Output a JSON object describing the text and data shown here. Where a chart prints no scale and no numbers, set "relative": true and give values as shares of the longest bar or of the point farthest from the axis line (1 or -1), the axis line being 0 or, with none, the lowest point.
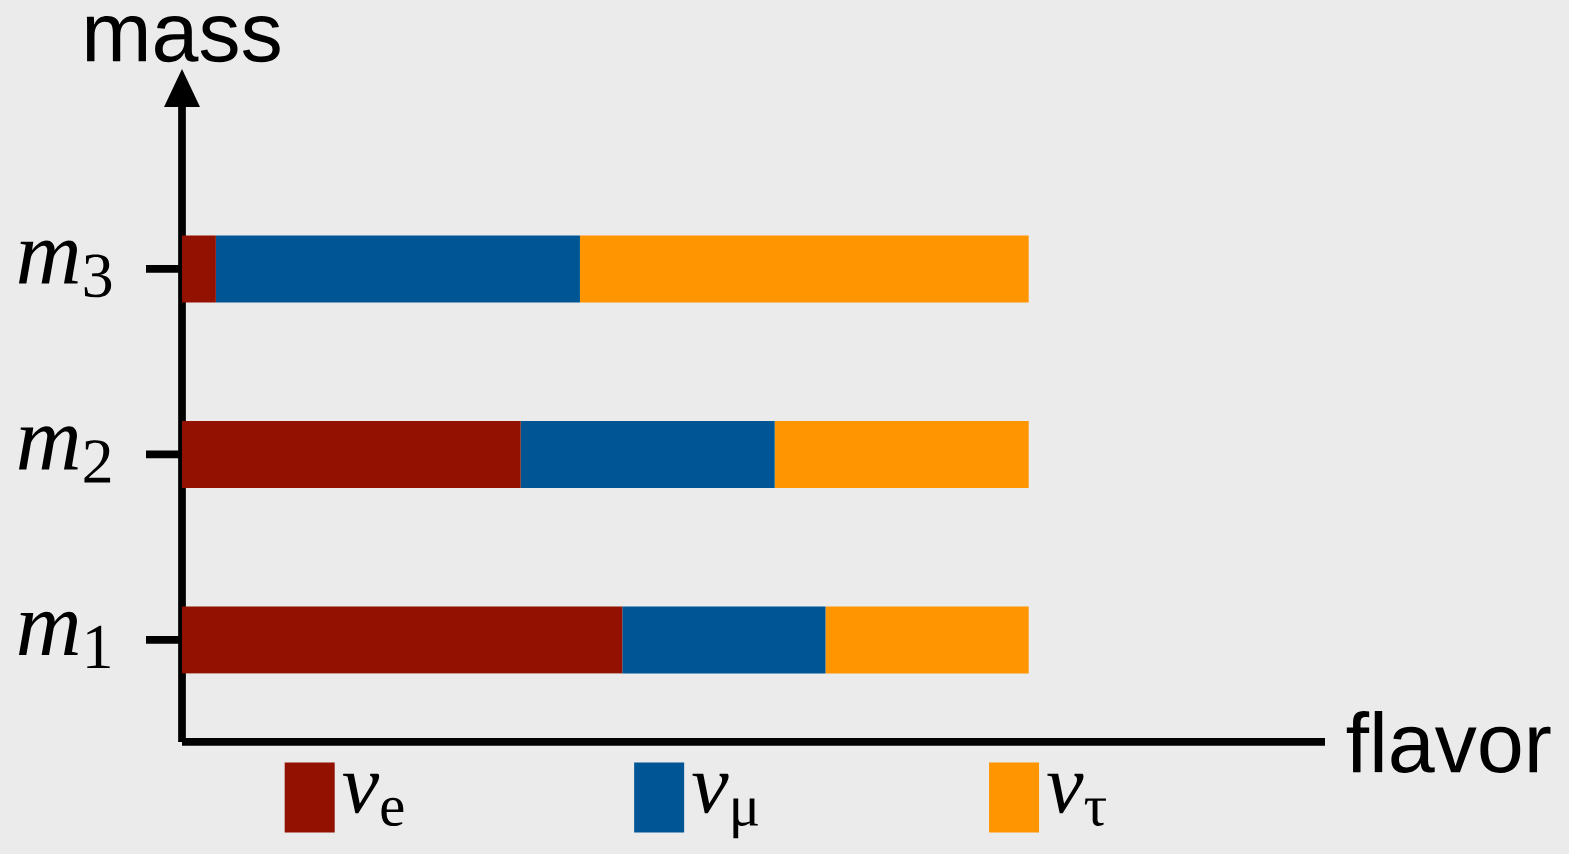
{
  "chart_data": {
    "type": "bar",
    "orientation": "horizontal",
    "stacked": true,
    "relative": true,
    "xlabel": "flavor",
    "ylabel": "mass",
    "categories": [
      "*m*$_{3}$",
      "*m*$_{2}$",
      "*m*$_{1}$"
    ],
    "series": [
      {
        "name": "*ν*$_{e}$",
        "color": "#921100",
        "values": [
          0.04,
          0.4,
          0.52
        ]
      },
      {
        "name": "*ν*$_{μ}$",
        "color": "#005694",
        "values": [
          0.43,
          0.3,
          0.24
        ]
      },
      {
        "name": "*ν*$_{τ}$",
        "color": "#ff9500",
        "values": [
          0.53,
          0.3,
          0.24
        ]
      }
    ],
    "legend": "bottom",
    "tick_labels": "y"
  }
}
